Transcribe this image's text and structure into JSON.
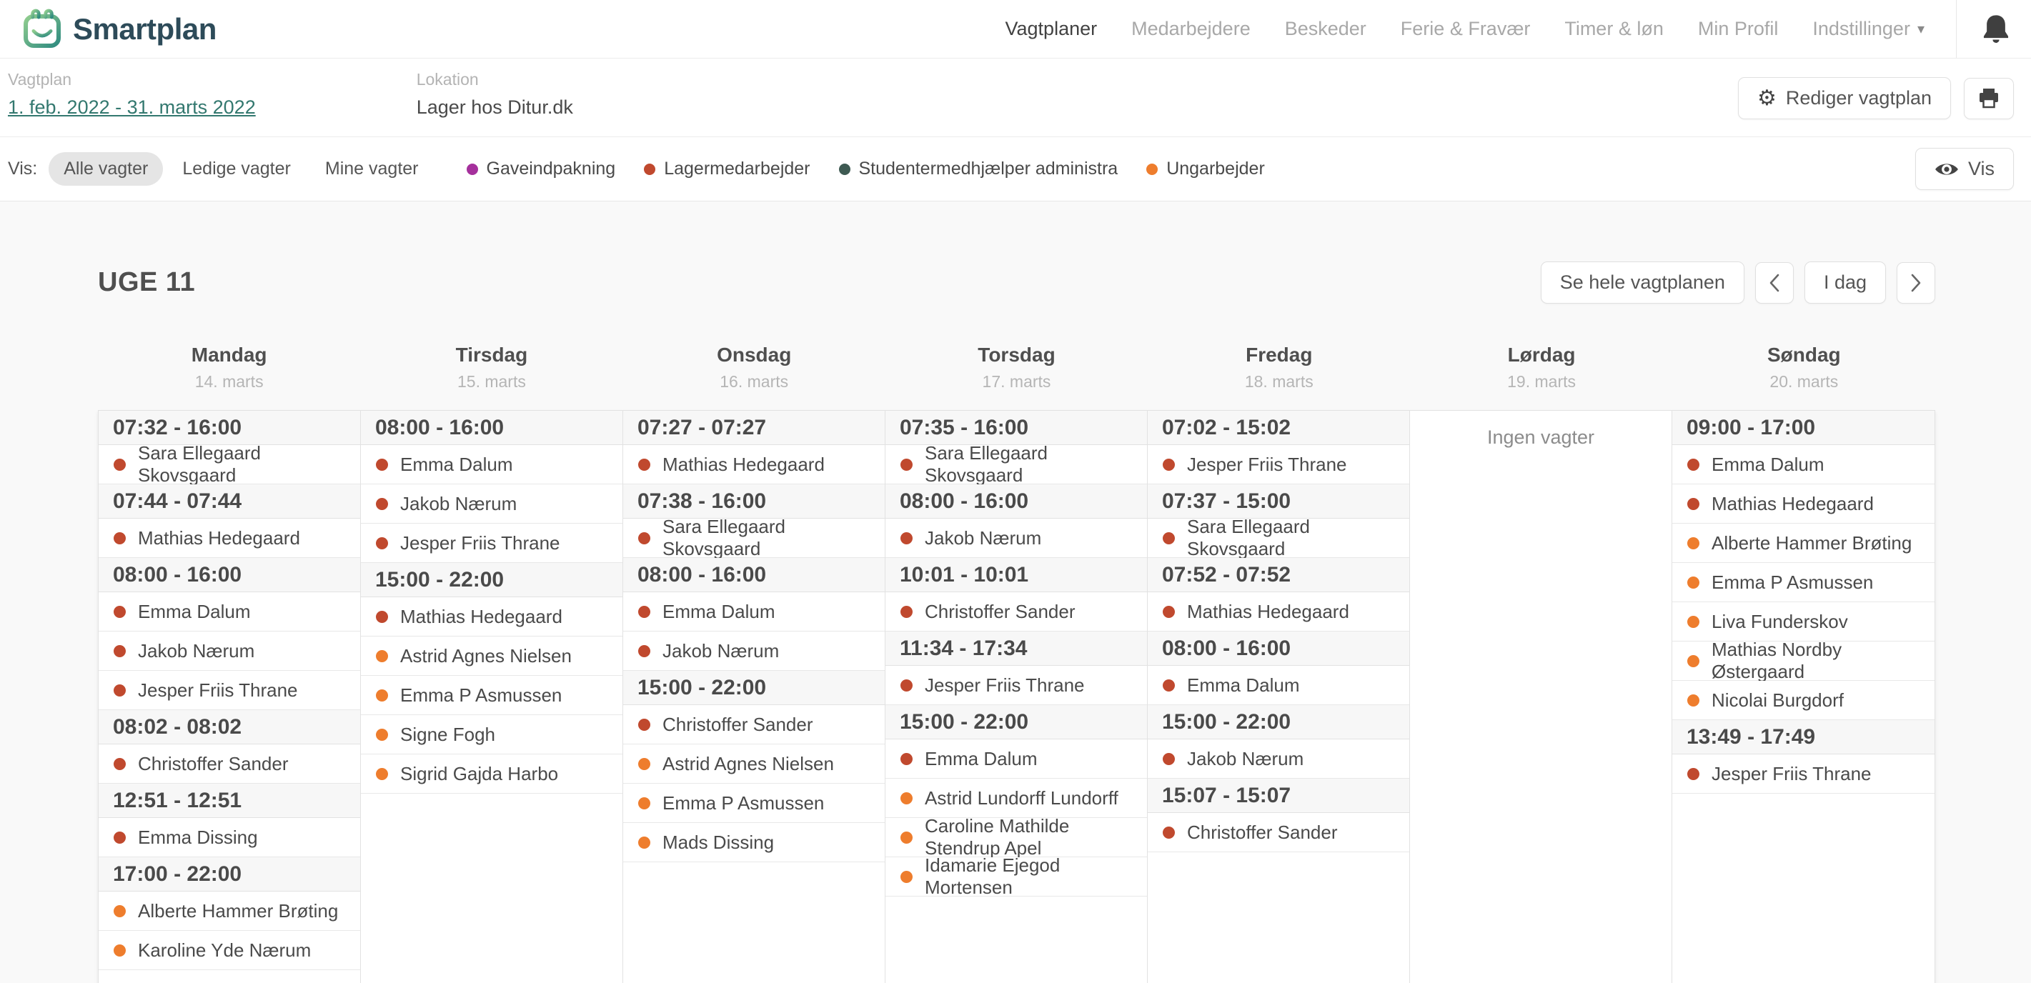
{
  "nav": {
    "logo_text": "Smartplan",
    "items": [
      {
        "label": "Vagtplaner",
        "active": true,
        "caret": false
      },
      {
        "label": "Medarbejdere",
        "active": false,
        "caret": false
      },
      {
        "label": "Beskeder",
        "active": false,
        "caret": false
      },
      {
        "label": "Ferie & Fravær",
        "active": false,
        "caret": false
      },
      {
        "label": "Timer & løn",
        "active": false,
        "caret": false
      },
      {
        "label": "Min Profil",
        "active": false,
        "caret": false
      },
      {
        "label": "Indstillinger",
        "active": false,
        "caret": true
      }
    ]
  },
  "plan_header": {
    "plan_label": "Vagtplan",
    "plan_period": "1. feb. 2022 - 31. marts 2022",
    "location_label": "Lokation",
    "location_value": "Lager hos Ditur.dk",
    "edit_button": "Rediger vagtplan"
  },
  "filter_bar": {
    "label": "Vis:",
    "options": [
      {
        "label": "Alle vagter",
        "selected": true
      },
      {
        "label": "Ledige vagter",
        "selected": false
      },
      {
        "label": "Mine vagter",
        "selected": false
      }
    ],
    "legend": [
      {
        "label": "Gaveindpakning",
        "role": "gaveindpakning"
      },
      {
        "label": "Lagermedarbejder",
        "role": "lagermedarbejder"
      },
      {
        "label": "Studentermedhjælper administra",
        "role": "studentermedhjaelper"
      },
      {
        "label": "Ungarbejder",
        "role": "ungarbejder"
      }
    ],
    "view_button": "Vis"
  },
  "week": {
    "title": "UGE 11",
    "see_full_button": "Se hele vagtplanen",
    "today_button": "I dag"
  },
  "colors": {
    "gaveindpakning": "#a5309c",
    "lagermedarbejder": "#c0492e",
    "studentermedhjaelper": "#3e5a52",
    "ungarbejder": "#ee7d2d"
  },
  "no_shifts_text": "Ingen vagter",
  "days": [
    {
      "name": "Mandag",
      "date": "14. marts",
      "rows": [
        {
          "type": "time",
          "text": "07:32 - 16:00"
        },
        {
          "type": "person",
          "name": "Sara Ellegaard Skovsgaard",
          "role": "lagermedarbejder"
        },
        {
          "type": "time",
          "text": "07:44 - 07:44"
        },
        {
          "type": "person",
          "name": "Mathias Hedegaard",
          "role": "lagermedarbejder"
        },
        {
          "type": "time",
          "text": "08:00 - 16:00"
        },
        {
          "type": "person",
          "name": "Emma Dalum",
          "role": "lagermedarbejder"
        },
        {
          "type": "person",
          "name": "Jakob Nærum",
          "role": "lagermedarbejder"
        },
        {
          "type": "person",
          "name": "Jesper Friis Thrane",
          "role": "lagermedarbejder"
        },
        {
          "type": "time",
          "text": "08:02 - 08:02"
        },
        {
          "type": "person",
          "name": "Christoffer Sander",
          "role": "lagermedarbejder"
        },
        {
          "type": "time",
          "text": "12:51 - 12:51"
        },
        {
          "type": "person",
          "name": "Emma Dissing",
          "role": "lagermedarbejder"
        },
        {
          "type": "time",
          "text": "17:00 - 22:00"
        },
        {
          "type": "person",
          "name": "Alberte Hammer Brøting",
          "role": "ungarbejder"
        },
        {
          "type": "person",
          "name": "Karoline Yde Nærum",
          "role": "ungarbejder"
        },
        {
          "type": "empty"
        }
      ]
    },
    {
      "name": "Tirsdag",
      "date": "15. marts",
      "rows": [
        {
          "type": "time",
          "text": "08:00 - 16:00"
        },
        {
          "type": "person",
          "name": "Emma Dalum",
          "role": "lagermedarbejder"
        },
        {
          "type": "person",
          "name": "Jakob Nærum",
          "role": "lagermedarbejder"
        },
        {
          "type": "person",
          "name": "Jesper Friis Thrane",
          "role": "lagermedarbejder"
        },
        {
          "type": "time",
          "text": "15:00 - 22:00"
        },
        {
          "type": "person",
          "name": "Mathias Hedegaard",
          "role": "lagermedarbejder"
        },
        {
          "type": "person",
          "name": "Astrid Agnes Nielsen",
          "role": "ungarbejder"
        },
        {
          "type": "person",
          "name": "Emma P Asmussen",
          "role": "ungarbejder"
        },
        {
          "type": "person",
          "name": "Signe Fogh",
          "role": "ungarbejder"
        },
        {
          "type": "person",
          "name": "Sigrid Gajda Harbo",
          "role": "ungarbejder"
        }
      ]
    },
    {
      "name": "Onsdag",
      "date": "16. marts",
      "rows": [
        {
          "type": "time",
          "text": "07:27 - 07:27"
        },
        {
          "type": "person",
          "name": "Mathias Hedegaard",
          "role": "lagermedarbejder"
        },
        {
          "type": "time",
          "text": "07:38 - 16:00"
        },
        {
          "type": "person",
          "name": "Sara Ellegaard Skovsgaard",
          "role": "lagermedarbejder"
        },
        {
          "type": "time",
          "text": "08:00 - 16:00"
        },
        {
          "type": "person",
          "name": "Emma Dalum",
          "role": "lagermedarbejder"
        },
        {
          "type": "person",
          "name": "Jakob Nærum",
          "role": "lagermedarbejder"
        },
        {
          "type": "time",
          "text": "15:00 - 22:00"
        },
        {
          "type": "person",
          "name": "Christoffer Sander",
          "role": "lagermedarbejder"
        },
        {
          "type": "person",
          "name": "Astrid Agnes Nielsen",
          "role": "ungarbejder"
        },
        {
          "type": "person",
          "name": "Emma P Asmussen",
          "role": "ungarbejder"
        },
        {
          "type": "person",
          "name": "Mads Dissing",
          "role": "ungarbejder"
        }
      ]
    },
    {
      "name": "Torsdag",
      "date": "17. marts",
      "rows": [
        {
          "type": "time",
          "text": "07:35 - 16:00"
        },
        {
          "type": "person",
          "name": "Sara Ellegaard Skovsgaard",
          "role": "lagermedarbejder"
        },
        {
          "type": "time",
          "text": "08:00 - 16:00"
        },
        {
          "type": "person",
          "name": "Jakob Nærum",
          "role": "lagermedarbejder"
        },
        {
          "type": "time",
          "text": "10:01 - 10:01"
        },
        {
          "type": "person",
          "name": "Christoffer Sander",
          "role": "lagermedarbejder"
        },
        {
          "type": "time",
          "text": "11:34 - 17:34"
        },
        {
          "type": "person",
          "name": "Jesper Friis Thrane",
          "role": "lagermedarbejder"
        },
        {
          "type": "time",
          "text": "15:00 - 22:00"
        },
        {
          "type": "person",
          "name": "Emma Dalum",
          "role": "lagermedarbejder"
        },
        {
          "type": "person",
          "name": "Astrid Lundorff Lundorff",
          "role": "ungarbejder"
        },
        {
          "type": "person",
          "name": "Caroline Mathilde Stendrup Apel",
          "role": "ungarbejder"
        },
        {
          "type": "person",
          "name": "Idamarie Ejegod Mortensen",
          "role": "ungarbejder"
        }
      ]
    },
    {
      "name": "Fredag",
      "date": "18. marts",
      "rows": [
        {
          "type": "time",
          "text": "07:02 - 15:02"
        },
        {
          "type": "person",
          "name": "Jesper Friis Thrane",
          "role": "lagermedarbejder"
        },
        {
          "type": "time",
          "text": "07:37 - 15:00"
        },
        {
          "type": "person",
          "name": "Sara Ellegaard Skovsgaard",
          "role": "lagermedarbejder"
        },
        {
          "type": "time",
          "text": "07:52 - 07:52"
        },
        {
          "type": "person",
          "name": "Mathias Hedegaard",
          "role": "lagermedarbejder"
        },
        {
          "type": "time",
          "text": "08:00 - 16:00"
        },
        {
          "type": "person",
          "name": "Emma Dalum",
          "role": "lagermedarbejder"
        },
        {
          "type": "time",
          "text": "15:00 - 22:00"
        },
        {
          "type": "person",
          "name": "Jakob Nærum",
          "role": "lagermedarbejder"
        },
        {
          "type": "time",
          "text": "15:07 - 15:07"
        },
        {
          "type": "person",
          "name": "Christoffer Sander",
          "role": "lagermedarbejder"
        }
      ]
    },
    {
      "name": "Lørdag",
      "date": "19. marts",
      "rows": []
    },
    {
      "name": "Søndag",
      "date": "20. marts",
      "rows": [
        {
          "type": "time",
          "text": "09:00 - 17:00"
        },
        {
          "type": "person",
          "name": "Emma Dalum",
          "role": "lagermedarbejder"
        },
        {
          "type": "person",
          "name": "Mathias Hedegaard",
          "role": "lagermedarbejder"
        },
        {
          "type": "person",
          "name": "Alberte Hammer Brøting",
          "role": "ungarbejder"
        },
        {
          "type": "person",
          "name": "Emma P Asmussen",
          "role": "ungarbejder"
        },
        {
          "type": "person",
          "name": "Liva Funderskov",
          "role": "ungarbejder"
        },
        {
          "type": "person",
          "name": "Mathias Nordby Østergaard",
          "role": "ungarbejder"
        },
        {
          "type": "person",
          "name": "Nicolai Burgdorf",
          "role": "ungarbejder"
        },
        {
          "type": "time",
          "text": "13:49 - 17:49"
        },
        {
          "type": "person",
          "name": "Jesper Friis Thrane",
          "role": "lagermedarbejder"
        }
      ]
    }
  ]
}
